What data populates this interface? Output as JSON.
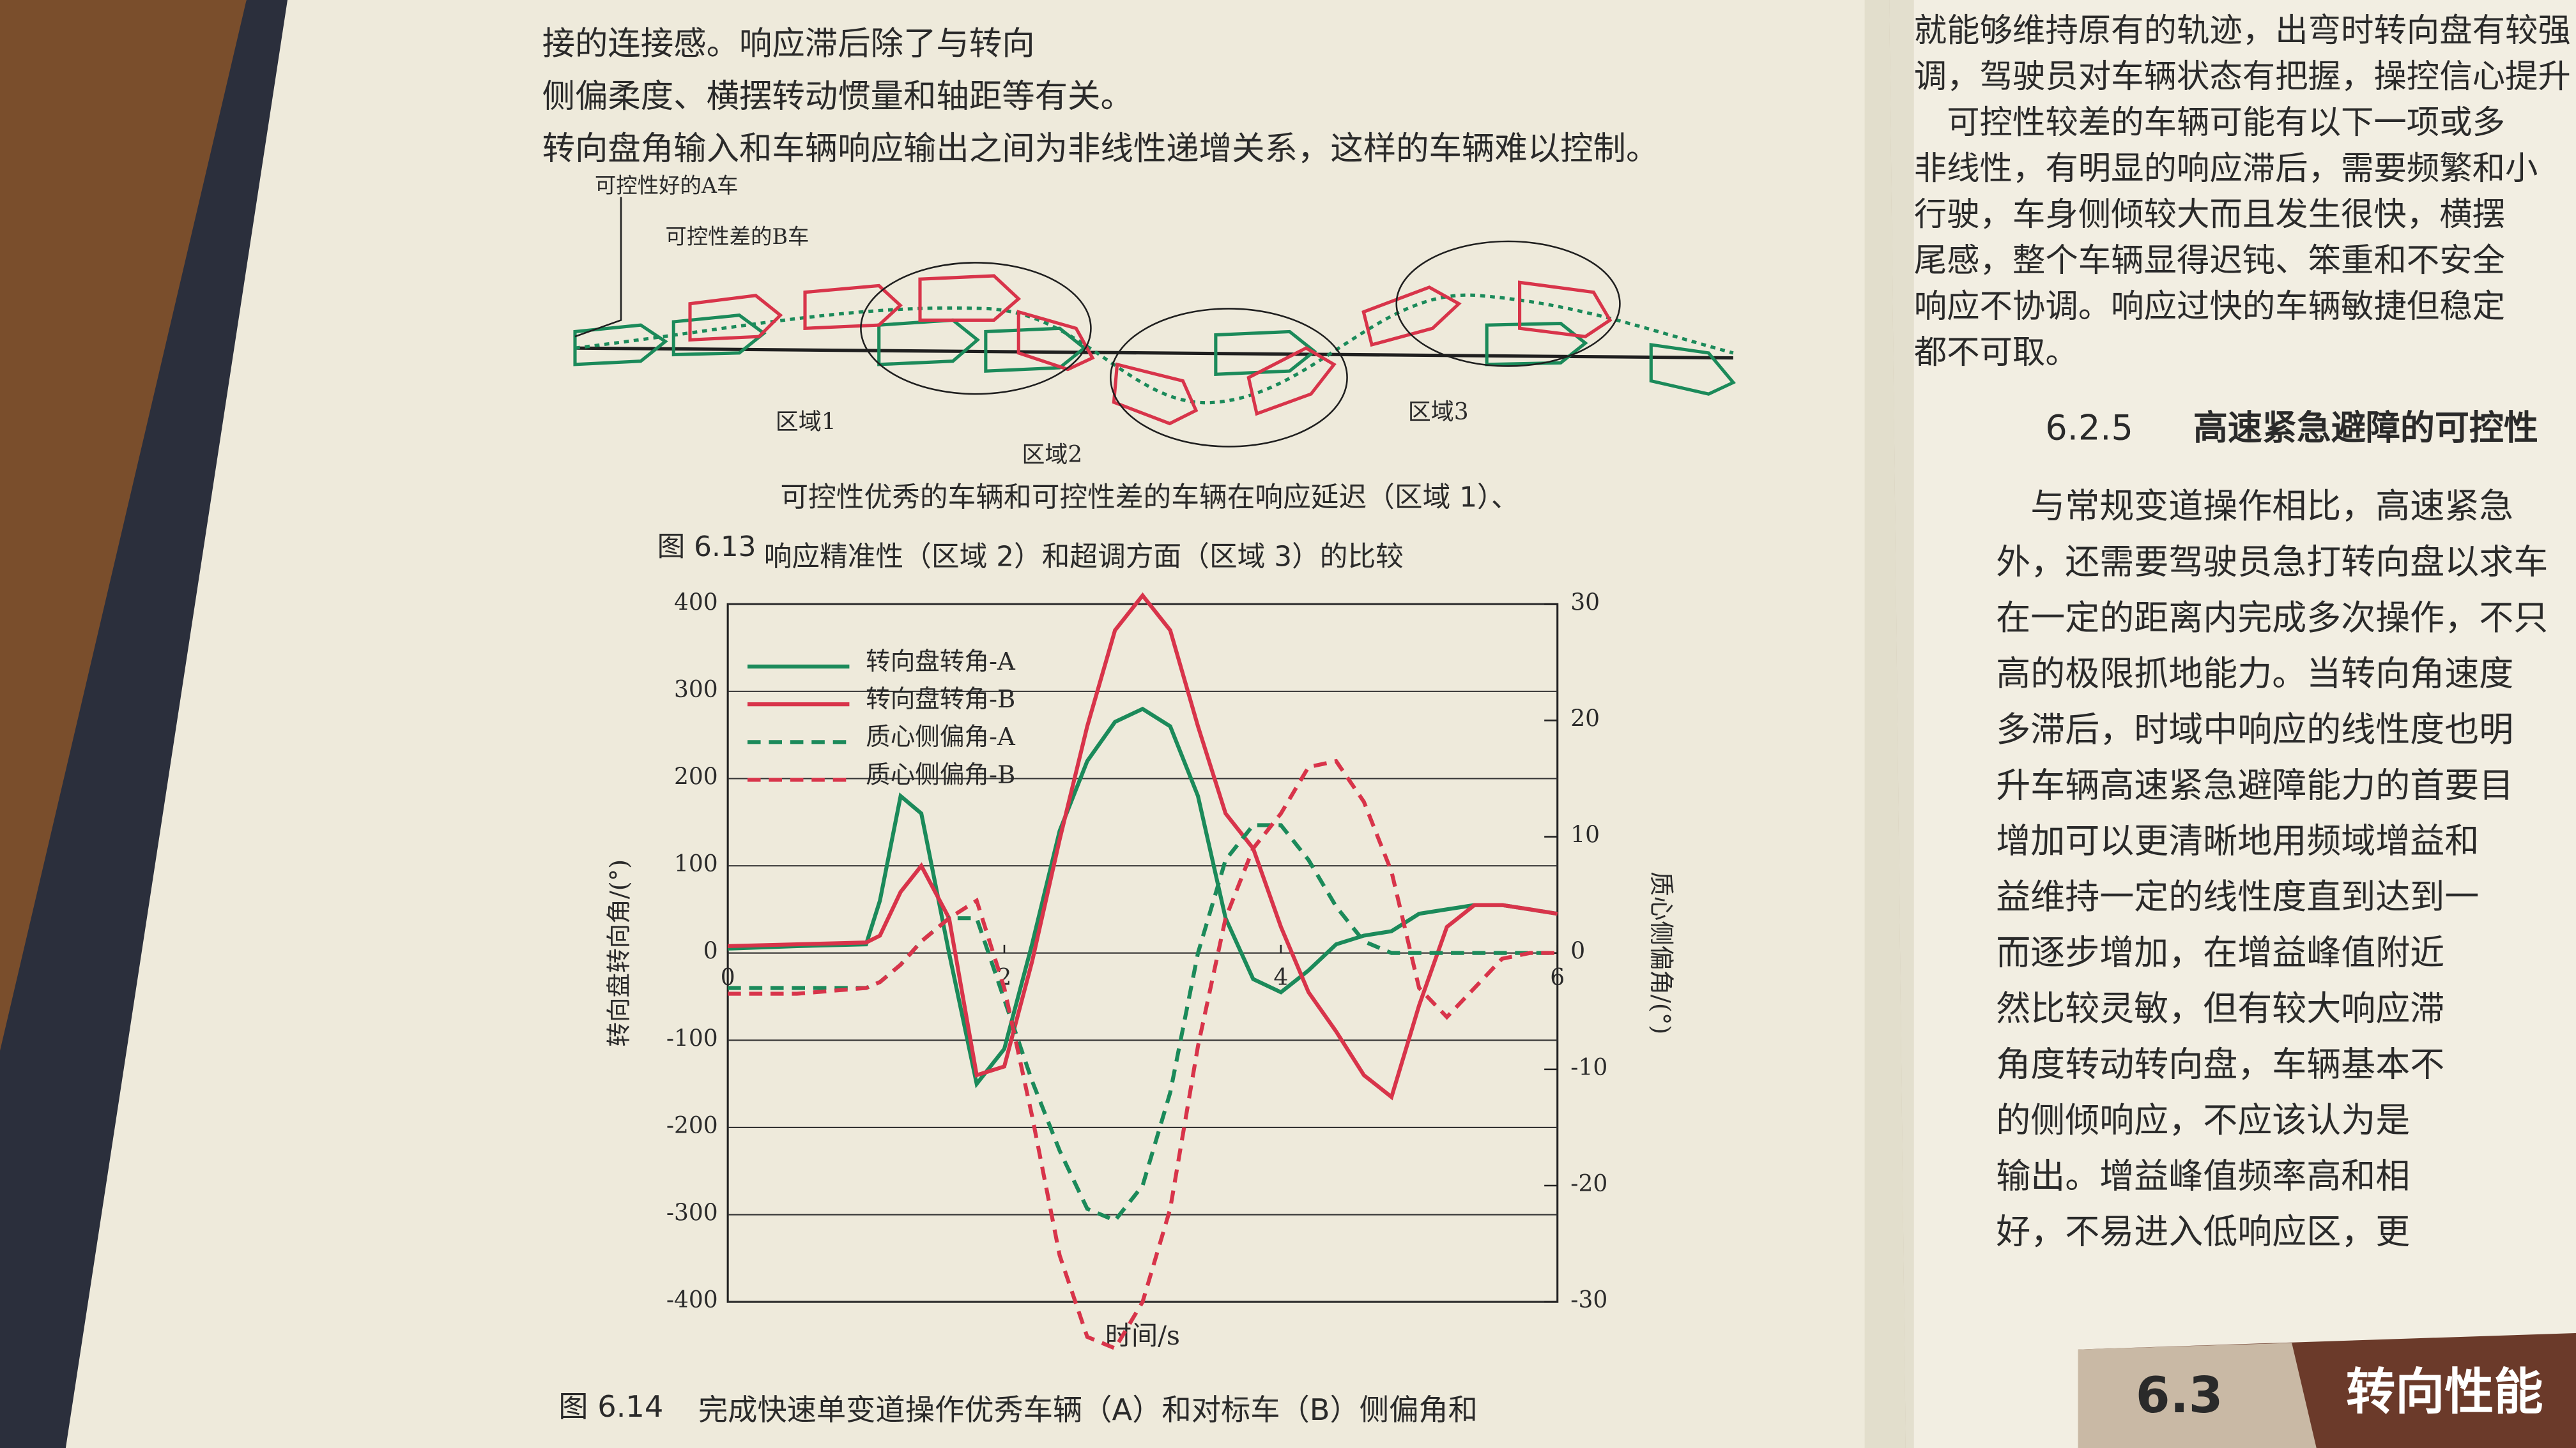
{
  "chart_data": {
    "type": "line",
    "x_label": "时间/s",
    "y_label": "转向盘转向角/(°)",
    "y2_label": "质心侧偏角/(°)",
    "x": [
      0,
      0.5,
      1.0,
      1.1,
      1.25,
      1.4,
      1.6,
      1.8,
      2.0,
      2.2,
      2.4,
      2.6,
      2.8,
      3.0,
      3.2,
      3.4,
      3.6,
      3.8,
      4.0,
      4.2,
      4.4,
      4.6,
      4.8,
      5.0,
      5.2,
      5.4,
      5.6,
      5.8,
      6.0
    ],
    "xlim": [
      0,
      6
    ],
    "xticks": [
      0,
      2,
      4,
      6
    ],
    "ylim": [
      -400,
      400
    ],
    "yticks": [
      400,
      300,
      200,
      100,
      0,
      -100,
      -200,
      -300,
      -400
    ],
    "y2lim": [
      -30,
      30
    ],
    "y2ticks": [
      30,
      20,
      10,
      0,
      -10,
      -20,
      -30
    ],
    "grid": true,
    "legend": "upper left",
    "series": [
      {
        "name": "转向盘转角-A",
        "color": "#1b8a5a",
        "linestyle": "solid",
        "axis": "y",
        "values": [
          5,
          8,
          10,
          60,
          180,
          160,
          0,
          -150,
          -110,
          10,
          140,
          220,
          265,
          280,
          260,
          180,
          40,
          -30,
          -45,
          -20,
          10,
          20,
          25,
          45,
          50,
          55,
          55,
          50,
          45
        ]
      },
      {
        "name": "转向盘转角-B",
        "color": "#d8344a",
        "linestyle": "solid",
        "axis": "y",
        "values": [
          8,
          10,
          12,
          20,
          70,
          100,
          40,
          -140,
          -130,
          -10,
          130,
          260,
          370,
          410,
          370,
          260,
          160,
          120,
          30,
          -45,
          -90,
          -140,
          -165,
          -60,
          30,
          55,
          55,
          50,
          45
        ]
      },
      {
        "name": "质心侧偏角-A",
        "color": "#1b8a5a",
        "linestyle": "dashed",
        "axis": "y2",
        "values": [
          -3,
          -3,
          -3,
          -2.5,
          -1,
          1,
          3,
          3,
          -4,
          -11,
          -17,
          -22,
          -23,
          -20,
          -12,
          0,
          8,
          11,
          11,
          8,
          4,
          1,
          0,
          0,
          0,
          0,
          0,
          0,
          0
        ]
      },
      {
        "name": "质心侧偏角-B",
        "color": "#d8344a",
        "linestyle": "dashed",
        "axis": "y2",
        "values": [
          -3.5,
          -3.5,
          -3,
          -2.5,
          -1,
          1,
          3,
          4.5,
          -3,
          -14,
          -26,
          -33,
          -34,
          -30,
          -22,
          -8,
          3,
          9,
          12,
          16,
          16.5,
          13,
          7,
          -3,
          -5.5,
          -3,
          -0.5,
          0,
          0
        ]
      }
    ]
  },
  "page": {
    "left_text": [
      "接的连接感。响应滞后除了与转向",
      "侧偏柔度、横摆转动惯量和轴距等有关。",
      "转向盘角输入和车辆响应输出之间为非线性递增关系，这样的车辆难以控制。"
    ],
    "figure_613": {
      "label_a": "可控性好的A车",
      "label_b": "可控性差的B车",
      "zone1": "区域1",
      "zone2": "区域2",
      "zone3": "区域3",
      "number": "图 6.13",
      "caption": [
        "可控性优秀的车辆和可控性差的车辆在响应延迟（区域 1）、",
        "响应精准性（区域 2）和超调方面（区域 3）的比较"
      ]
    },
    "figure_614": {
      "number": "图 6.14",
      "caption": "完成快速单变道操作优秀车辆（A）和对标车（B）侧偏角和"
    },
    "right_text": [
      "就能够维持原有的轨迹，出弯时转向盘有较强",
      "调，驾驶员对车辆状态有把握，操控信心提升",
      "　可控性较差的车辆可能有以下一项或多",
      "非线性，有明显的响应滞后，需要频繁和小",
      "行驶，车身侧倾较大而且发生很快，横摆",
      "尾感，整个车辆显得迟钝、笨重和不安全",
      "响应不协调。响应过快的车辆敏捷但稳定",
      "都不可取。"
    ],
    "section": {
      "number": "6.2.5",
      "title": "高速紧急避障的可控性"
    },
    "right_text_2": [
      "　与常规变道操作相比，高速紧急",
      "外，还需要驾驶员急打转向盘以求车",
      "在一定的距离内完成多次操作，不只",
      "高的极限抓地能力。当转向角速度",
      "多滞后，时域中响应的线性度也明",
      "升车辆高速紧急避障能力的首要目",
      "增加可以更清晰地用频域增益和",
      "益维持一定的线性度直到达到一",
      "而逐步增加，在增益峰值附近",
      "然比较灵敏，但有较大响应滞",
      "角度转动转向盘，车辆基本不",
      "的侧倾响应，不应该认为是",
      "输出。增益峰值频率高和相",
      "好，不易进入低响应区，更"
    ],
    "footer_section": {
      "number": "6.3",
      "title": "转向性能"
    }
  }
}
